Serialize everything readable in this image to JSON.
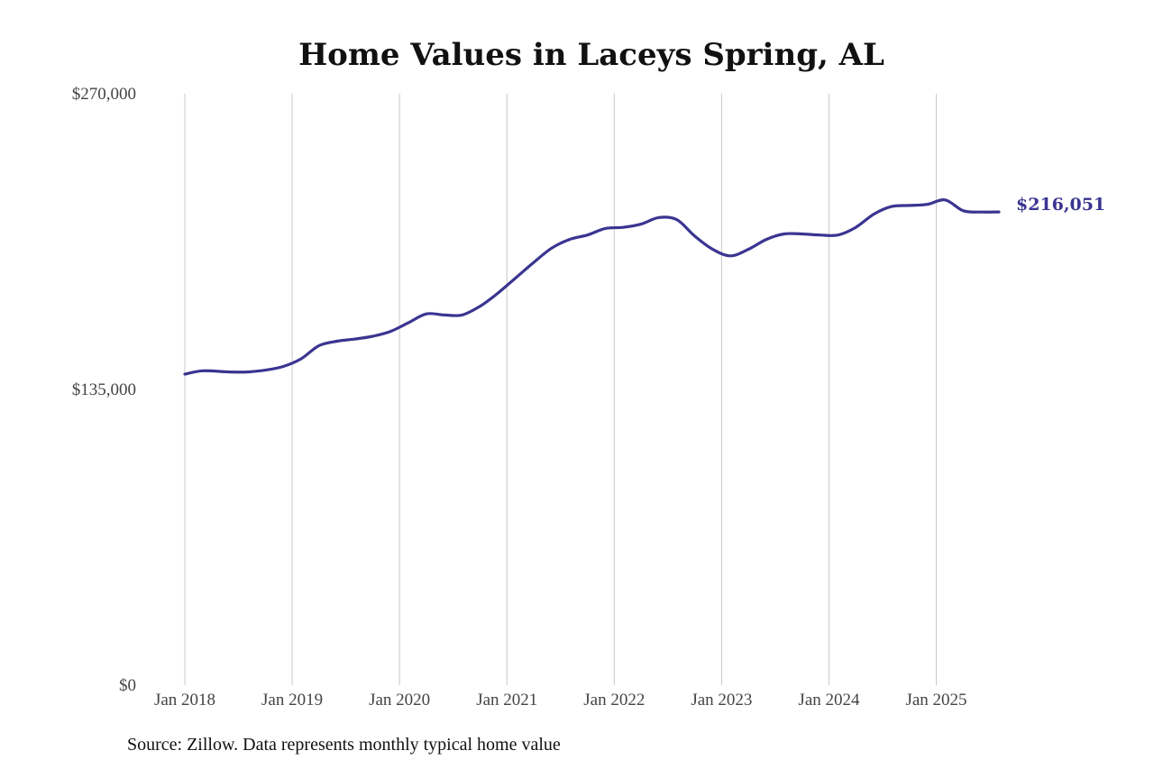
{
  "chart_data": {
    "type": "line",
    "title": "Home Values in Laceys Spring, AL",
    "xlabel": "",
    "ylabel": "",
    "ylim": [
      0,
      270000
    ],
    "xlim": [
      "2018-01",
      "2025-08"
    ],
    "y_ticks": [
      {
        "value": 0,
        "label": "$0"
      },
      {
        "value": 135000,
        "label": "$135,000"
      },
      {
        "value": 270000,
        "label": "$270,000"
      }
    ],
    "x_ticks": [
      {
        "value": "2018-01",
        "label": "Jan 2018"
      },
      {
        "value": "2019-01",
        "label": "Jan 2019"
      },
      {
        "value": "2020-01",
        "label": "Jan 2020"
      },
      {
        "value": "2021-01",
        "label": "Jan 2021"
      },
      {
        "value": "2022-01",
        "label": "Jan 2022"
      },
      {
        "value": "2023-01",
        "label": "Jan 2023"
      },
      {
        "value": "2024-01",
        "label": "Jan 2024"
      },
      {
        "value": "2025-01",
        "label": "Jan 2025"
      }
    ],
    "grid": {
      "vertical": true,
      "horizontal": false
    },
    "color": "#3a3591",
    "series": [
      {
        "points": [
          [
            "2018-01",
            142000
          ],
          [
            "2018-03",
            143500
          ],
          [
            "2018-06",
            143000
          ],
          [
            "2018-08",
            143000
          ],
          [
            "2018-10",
            143800
          ],
          [
            "2018-12",
            145500
          ],
          [
            "2019-02",
            149000
          ],
          [
            "2019-04",
            155000
          ],
          [
            "2019-06",
            157000
          ],
          [
            "2019-08",
            158000
          ],
          [
            "2019-10",
            159300
          ],
          [
            "2019-12",
            161500
          ],
          [
            "2020-02",
            165500
          ],
          [
            "2020-04",
            169500
          ],
          [
            "2020-06",
            169000
          ],
          [
            "2020-08",
            169000
          ],
          [
            "2020-10",
            173000
          ],
          [
            "2020-12",
            179000
          ],
          [
            "2021-02",
            186000
          ],
          [
            "2021-04",
            193000
          ],
          [
            "2021-06",
            199500
          ],
          [
            "2021-08",
            203500
          ],
          [
            "2021-10",
            205500
          ],
          [
            "2021-12",
            208500
          ],
          [
            "2022-02",
            209000
          ],
          [
            "2022-04",
            210500
          ],
          [
            "2022-06",
            213500
          ],
          [
            "2022-08",
            212500
          ],
          [
            "2022-10",
            205000
          ],
          [
            "2022-12",
            199000
          ],
          [
            "2023-02",
            196000
          ],
          [
            "2023-04",
            199000
          ],
          [
            "2023-06",
            203500
          ],
          [
            "2023-08",
            206000
          ],
          [
            "2023-10",
            206000
          ],
          [
            "2023-12",
            205500
          ],
          [
            "2024-02",
            205500
          ],
          [
            "2024-04",
            209000
          ],
          [
            "2024-06",
            215000
          ],
          [
            "2024-08",
            218500
          ],
          [
            "2024-10",
            219000
          ],
          [
            "2024-12",
            219500
          ],
          [
            "2025-02",
            221500
          ],
          [
            "2025-04",
            216600
          ],
          [
            "2025-06",
            216000
          ],
          [
            "2025-08",
            216051
          ]
        ]
      }
    ],
    "end_label": "$216,051"
  },
  "footer": {
    "source": "Source: Zillow. Data represents monthly typical home value"
  }
}
